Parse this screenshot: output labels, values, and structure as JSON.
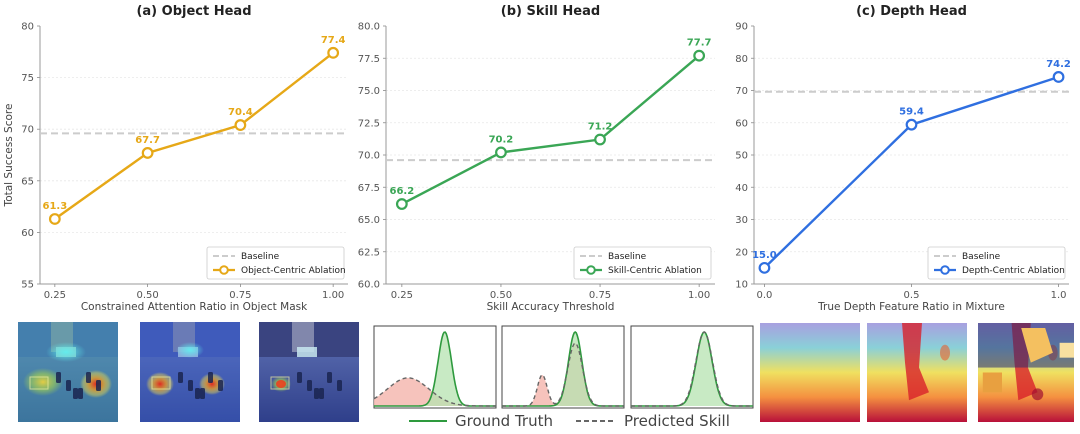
{
  "chart_data": [
    {
      "type": "line",
      "title": "(a) Object Head",
      "xlabel": "Constrained Attention Ratio in Object Mask",
      "ylabel": "Total Success Score",
      "x": [
        0.25,
        0.5,
        0.75,
        1.0
      ],
      "xticks": [
        "0.25",
        "0.50",
        "0.75",
        "1.00"
      ],
      "ylim": [
        55,
        80
      ],
      "yticks": [
        "55",
        "60",
        "65",
        "70",
        "75",
        "80"
      ],
      "grid": "horizontal",
      "legend_position": "lower-right",
      "baseline": {
        "name": "Baseline",
        "value": 69.6
      },
      "series": [
        {
          "name": "Object-Centric Ablation",
          "values": [
            61.3,
            67.7,
            70.4,
            77.4
          ],
          "labels": [
            "61.3",
            "67.7",
            "70.4",
            "77.4"
          ],
          "color": "#e6a817"
        }
      ]
    },
    {
      "type": "line",
      "title": "(b) Skill Head",
      "xlabel": "Skill Accuracy Threshold",
      "ylabel": "",
      "x": [
        0.25,
        0.5,
        0.75,
        1.0
      ],
      "xticks": [
        "0.25",
        "0.50",
        "0.75",
        "1.00"
      ],
      "ylim": [
        60,
        80
      ],
      "yticks": [
        "60.0",
        "62.5",
        "65.0",
        "67.5",
        "70.0",
        "72.5",
        "75.0",
        "77.5",
        "80.0"
      ],
      "grid": "horizontal",
      "legend_position": "lower-right",
      "baseline": {
        "name": "Baseline",
        "value": 69.6
      },
      "series": [
        {
          "name": "Skill-Centric Ablation",
          "values": [
            66.2,
            70.2,
            71.2,
            77.7
          ],
          "labels": [
            "66.2",
            "70.2",
            "71.2",
            "77.7"
          ],
          "color": "#3aa655"
        }
      ]
    },
    {
      "type": "line",
      "title": "(c) Depth Head",
      "xlabel": "True Depth Feature Ratio in Mixture",
      "ylabel": "",
      "x": [
        0.0,
        0.5,
        1.0
      ],
      "xticks": [
        "0.0",
        "0.5",
        "1.0"
      ],
      "ylim": [
        10,
        90
      ],
      "yticks": [
        "10",
        "20",
        "30",
        "40",
        "50",
        "60",
        "70",
        "80",
        "90"
      ],
      "grid": "horizontal",
      "legend_position": "lower-right",
      "baseline": {
        "name": "Baseline",
        "value": 69.6
      },
      "series": [
        {
          "name": "Depth-Centric Ablation",
          "values": [
            15.0,
            59.4,
            74.2
          ],
          "labels": [
            "15.0",
            "59.4",
            "74.2"
          ],
          "color": "#2f6fe0"
        }
      ]
    }
  ],
  "distribution_legend": {
    "ground_truth": "Ground Truth",
    "predicted": "Predicted Skill"
  },
  "colors": {
    "baseline": "#cccccc",
    "ground_truth": "#2e9a3e",
    "ground_truth_fill": "#b6e3b0",
    "predicted": "#666666",
    "predicted_fill": "#f4b8b0"
  }
}
